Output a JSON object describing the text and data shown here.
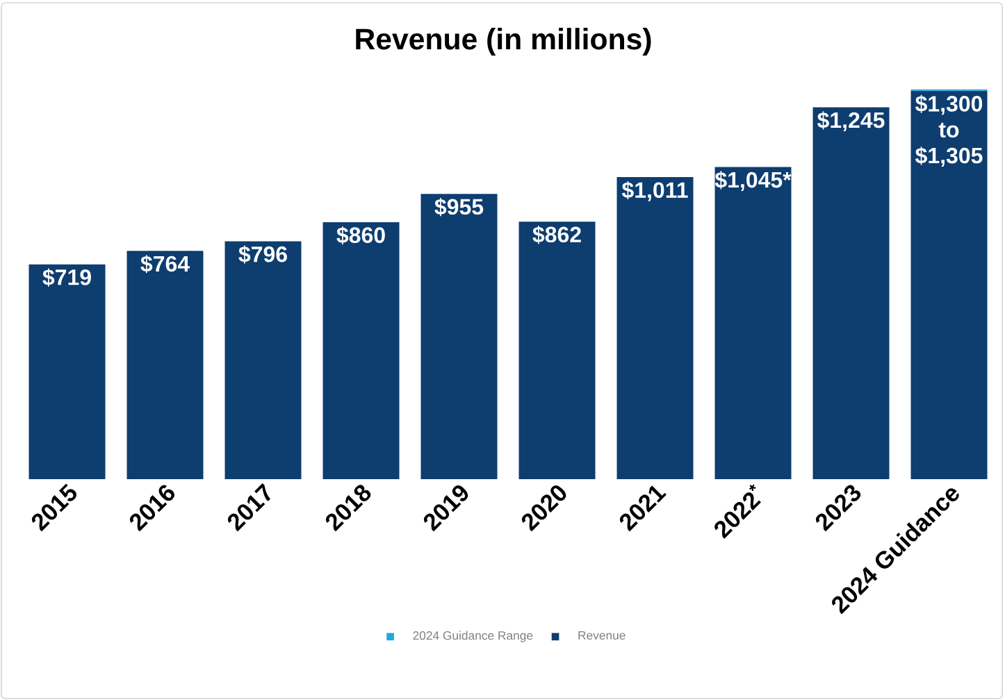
{
  "chart_data": {
    "type": "bar",
    "title": "Revenue (in millions)",
    "categories": [
      "2015",
      "2016",
      "2017",
      "2018",
      "2019",
      "2020",
      "2021",
      "2022$^{*}$",
      "2023",
      "2024 Guidance"
    ],
    "stacked": true,
    "legend": "bottom",
    "series": [
      {
        "name": "Revenue",
        "color": "#0e3d6f",
        "values": [
          719,
          764,
          796,
          860,
          955,
          862,
          1011,
          1045,
          1245,
          1300
        ],
        "value_labels": [
          "$719",
          "$764",
          "$796",
          "$860",
          "$955",
          "$862",
          "$1,011",
          "$1,045*",
          "$1,245",
          "$1,300 to $1,305"
        ]
      },
      {
        "name": "2024 Guidance Range",
        "color": "#22a8e0",
        "values": [
          null,
          null,
          null,
          null,
          null,
          null,
          null,
          null,
          null,
          5
        ]
      }
    ]
  }
}
